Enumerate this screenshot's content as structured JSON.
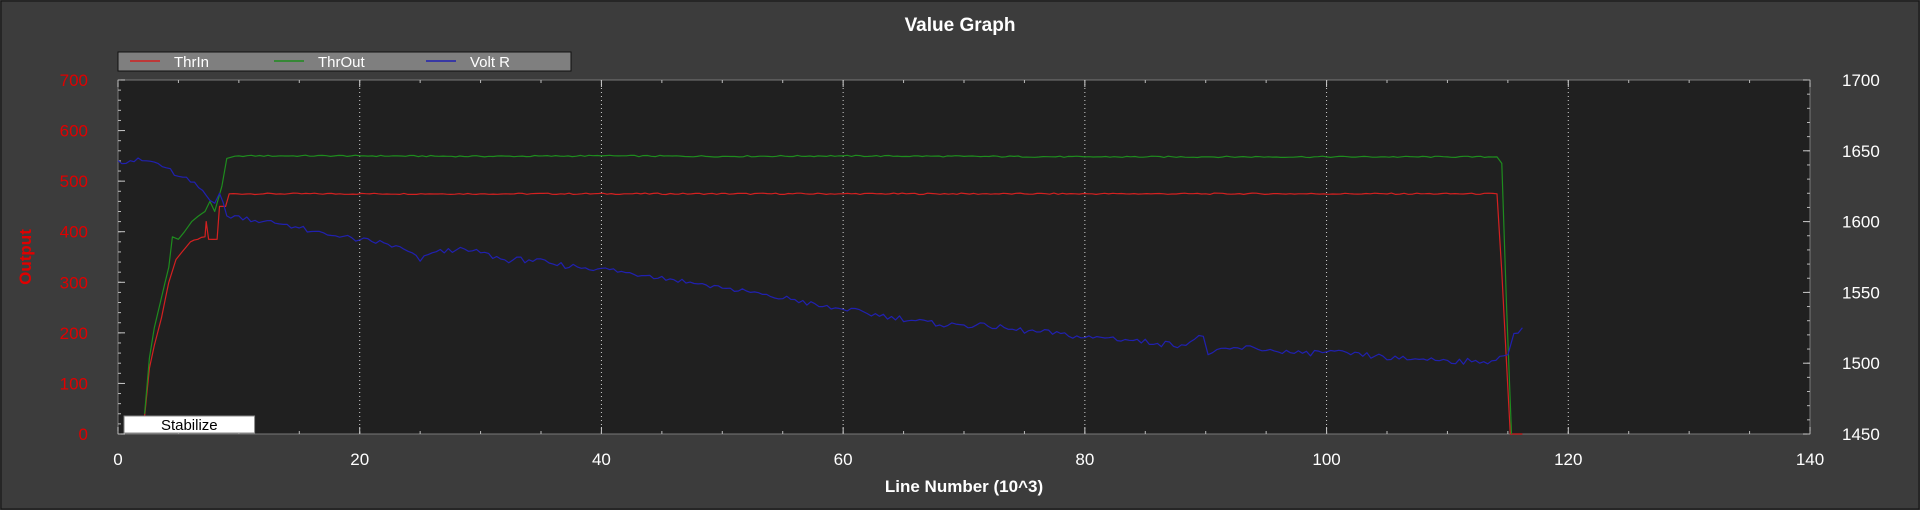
{
  "chart_data": {
    "type": "line",
    "title": "Value Graph",
    "xlabel": "Line Number (10^3)",
    "ylabel": "Output",
    "xlim": [
      0,
      140
    ],
    "ylim": [
      0,
      700
    ],
    "y2lim": [
      1450,
      1700
    ],
    "x_ticks": [
      "0",
      "20",
      "40",
      "60",
      "80",
      "100",
      "120",
      "140"
    ],
    "y_ticks": [
      "0",
      "100",
      "200",
      "300",
      "400",
      "500",
      "600",
      "700"
    ],
    "y2_ticks": [
      "1450",
      "1500",
      "1550",
      "1600",
      "1650",
      "1700"
    ],
    "grid": true,
    "legend_position": "top-left",
    "annotations": [
      {
        "label": "Stabilize",
        "x_range": [
          0.5,
          11.3
        ]
      }
    ],
    "series": [
      {
        "name": "ThrIn",
        "axis": "left",
        "color": "#d42020",
        "x": [
          2.2,
          2.6,
          3.0,
          3.6,
          4.2,
          4.8,
          5.3,
          6.0,
          6.6,
          7.2,
          7.3,
          7.5,
          8.2,
          8.4,
          8.9,
          9.2,
          30,
          60,
          90,
          114.1,
          114.5,
          115.2,
          115.7,
          116.2
        ],
        "y": [
          35,
          130,
          175,
          230,
          300,
          345,
          360,
          380,
          385,
          390,
          420,
          385,
          385,
          450,
          450,
          475,
          475,
          475,
          475,
          475,
          320,
          0,
          0,
          0
        ]
      },
      {
        "name": "ThrOut",
        "axis": "left",
        "color": "#1e8c1e",
        "x": [
          2.2,
          2.6,
          3.0,
          3.6,
          4.2,
          4.5,
          5.0,
          5.5,
          6.1,
          6.6,
          7.2,
          7.6,
          8.0,
          8.6,
          9.0,
          10,
          20,
          30,
          40,
          50,
          60,
          70,
          80,
          90,
          100,
          110,
          114.1,
          114.5,
          114.9,
          115.3
        ],
        "y": [
          40,
          150,
          210,
          270,
          330,
          390,
          385,
          400,
          420,
          430,
          440,
          460,
          440,
          490,
          545,
          550,
          550,
          549,
          550,
          549,
          550,
          549,
          548,
          548,
          548,
          548,
          548,
          535,
          250,
          0
        ]
      },
      {
        "name": "Volt R",
        "axis": "right",
        "color": "#2020b0",
        "x": [
          0,
          1,
          2,
          3,
          4,
          5,
          6,
          7,
          7.6,
          8.0,
          8.4,
          9.0,
          10,
          12,
          14,
          16,
          18,
          20,
          22,
          24,
          25,
          26,
          28,
          30,
          32,
          34,
          36,
          38,
          40,
          42,
          44,
          46,
          48,
          50,
          52,
          54,
          56,
          58,
          60,
          62,
          64,
          66,
          68,
          70,
          72,
          74,
          76,
          78,
          80,
          82,
          84,
          86,
          88,
          89.8,
          90.2,
          92,
          94,
          96,
          98,
          100,
          102,
          104,
          106,
          108,
          110,
          112,
          114,
          115,
          115.5,
          116.2
        ],
        "y": [
          1643,
          1643,
          1643,
          1642,
          1638,
          1632,
          1628,
          1622,
          1615,
          1613,
          1620,
          1604,
          1604,
          1600,
          1598,
          1593,
          1590,
          1587,
          1585,
          1579,
          1572,
          1578,
          1580,
          1578,
          1573,
          1573,
          1570,
          1568,
          1567,
          1564,
          1562,
          1559,
          1556,
          1553,
          1551,
          1547,
          1545,
          1540,
          1538,
          1535,
          1533,
          1530,
          1527,
          1527,
          1526,
          1524,
          1522,
          1521,
          1518,
          1518,
          1516,
          1514,
          1513,
          1519,
          1506,
          1510,
          1511,
          1508,
          1507,
          1508,
          1506,
          1505,
          1503,
          1503,
          1502,
          1501,
          1502,
          1506,
          1521,
          1525
        ]
      }
    ]
  }
}
